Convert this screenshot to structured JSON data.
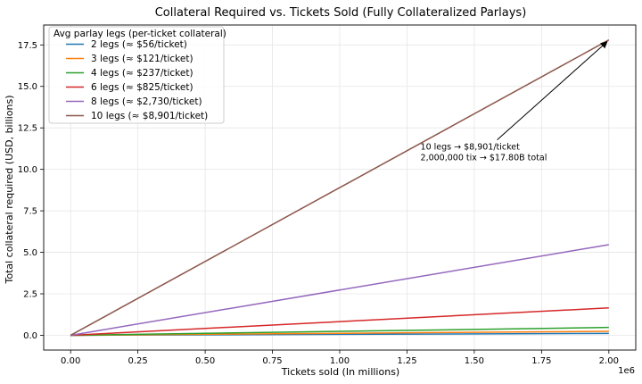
{
  "chart_data": {
    "type": "line",
    "title": "Collateral Required vs. Tickets Sold (Fully Collateralized Parlays)",
    "xlabel": "Tickets sold (In millions)",
    "ylabel": "Total collateral required (USD, billions)",
    "x_offset_label": "1e6",
    "xlim": [
      -100000,
      2100000
    ],
    "ylim": [
      -0.89,
      18.7
    ],
    "x_ticks": [
      0,
      250000,
      500000,
      750000,
      1000000,
      1250000,
      1500000,
      1750000,
      2000000
    ],
    "x_tick_labels": [
      "0.00",
      "0.25",
      "0.50",
      "0.75",
      "1.00",
      "1.25",
      "1.50",
      "1.75",
      "2.00"
    ],
    "y_ticks": [
      0,
      2.5,
      5,
      7.5,
      10,
      12.5,
      15,
      17.5
    ],
    "y_tick_labels": [
      "0.0",
      "2.5",
      "5.0",
      "7.5",
      "10.0",
      "12.5",
      "15.0",
      "17.5"
    ],
    "grid": true,
    "legend": {
      "title": "Avg parlay legs (per-ticket collateral)",
      "position": "top-left"
    },
    "series": [
      {
        "name": "2 legs  (≈ $56/ticket)",
        "color": "#1f77b4",
        "x": [
          0,
          2000000
        ],
        "values": [
          0,
          0.112
        ]
      },
      {
        "name": "3 legs  (≈ $121/ticket)",
        "color": "#ff7f0e",
        "x": [
          0,
          2000000
        ],
        "values": [
          0,
          0.242
        ]
      },
      {
        "name": "4 legs  (≈ $237/ticket)",
        "color": "#2ca02c",
        "x": [
          0,
          2000000
        ],
        "values": [
          0,
          0.474
        ]
      },
      {
        "name": "6 legs  (≈ $825/ticket)",
        "color": "#d62728",
        "x": [
          0,
          2000000
        ],
        "values": [
          0,
          1.65
        ]
      },
      {
        "name": "8 legs  (≈ $2,730/ticket)",
        "color": "#9467bd",
        "x": [
          0,
          2000000
        ],
        "values": [
          0,
          5.46
        ]
      },
      {
        "name": "10 legs  (≈ $8,901/ticket)",
        "color": "#8c564b",
        "x": [
          0,
          2000000
        ],
        "values": [
          0,
          17.8
        ]
      }
    ],
    "annotation": {
      "lines": [
        "10 legs → $8,901/ticket",
        "2,000,000 tix → $17.80B total"
      ],
      "point": [
        2000000,
        17.8
      ],
      "text_at": [
        1300000,
        10.7
      ]
    }
  }
}
